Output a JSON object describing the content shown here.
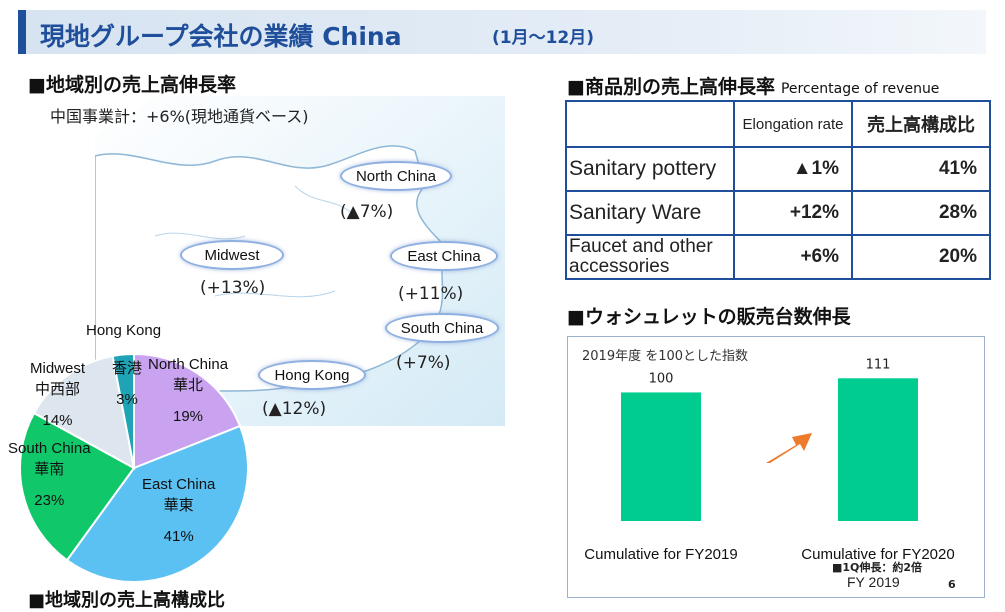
{
  "header": {
    "title": "現地グループ会社の業績 China",
    "period": "(1月～12月)"
  },
  "regional_growth": {
    "heading": "■地域別の売上高伸長率",
    "subtotal_note": "中国事業計：+6%(現地通貨ベース)",
    "regions": [
      {
        "name": "North China",
        "growth": "(▲7%)"
      },
      {
        "name": "Midwest",
        "growth": "(+13%)"
      },
      {
        "name": "East China",
        "growth": "(+11%)"
      },
      {
        "name": "South China",
        "growth": "(+7%)"
      },
      {
        "name": "Hong Kong",
        "growth": "(▲12%)"
      }
    ]
  },
  "regional_share": {
    "heading": "■地域別の売上高構成比",
    "slices": [
      {
        "en": "North China",
        "ja": "華北",
        "pct": "19%",
        "value": 19,
        "color": "#c9a3f0"
      },
      {
        "en": "East China",
        "ja": "華東",
        "pct": "41%",
        "value": 41,
        "color": "#5bc0f2"
      },
      {
        "en": "South China",
        "ja": "華南",
        "pct": "23%",
        "value": 23,
        "color": "#10c86a"
      },
      {
        "en": "Midwest",
        "ja": "中西部",
        "pct": "14%",
        "value": 14,
        "color": "#dde5ef"
      },
      {
        "en": "Hong Kong",
        "ja": "香港",
        "pct": "3%",
        "value": 3,
        "color": "#1fa3b6"
      }
    ]
  },
  "product_growth": {
    "heading": "■商品別の売上高伸長率",
    "heading_sub": "Percentage of revenue",
    "col_elongation": "Elongation rate",
    "col_share": "売上高構成比",
    "rows": [
      {
        "name": "Sanitary pottery",
        "rate": "▲1%",
        "share": "41%"
      },
      {
        "name": "Sanitary Ware",
        "rate": "+12%",
        "share": "28%"
      },
      {
        "name": "Faucet and other accessories",
        "rate": "+6%",
        "share": "20%"
      }
    ]
  },
  "washlet": {
    "heading": "■ウォシュレットの販売台数伸長",
    "index_note": "2019年度 を100とした指数",
    "footnote": "■1Q伸長：約2倍",
    "footer_fy": "FY 2019",
    "page": "6"
  },
  "chart_data": {
    "type": "bar",
    "categories": [
      "Cumulative for FY2019",
      "Cumulative for FY2020"
    ],
    "values": [
      100,
      111
    ],
    "ylim": [
      0,
      140
    ],
    "bar_color": "#00cc8f",
    "arrow_color": "#ee7a2c"
  }
}
